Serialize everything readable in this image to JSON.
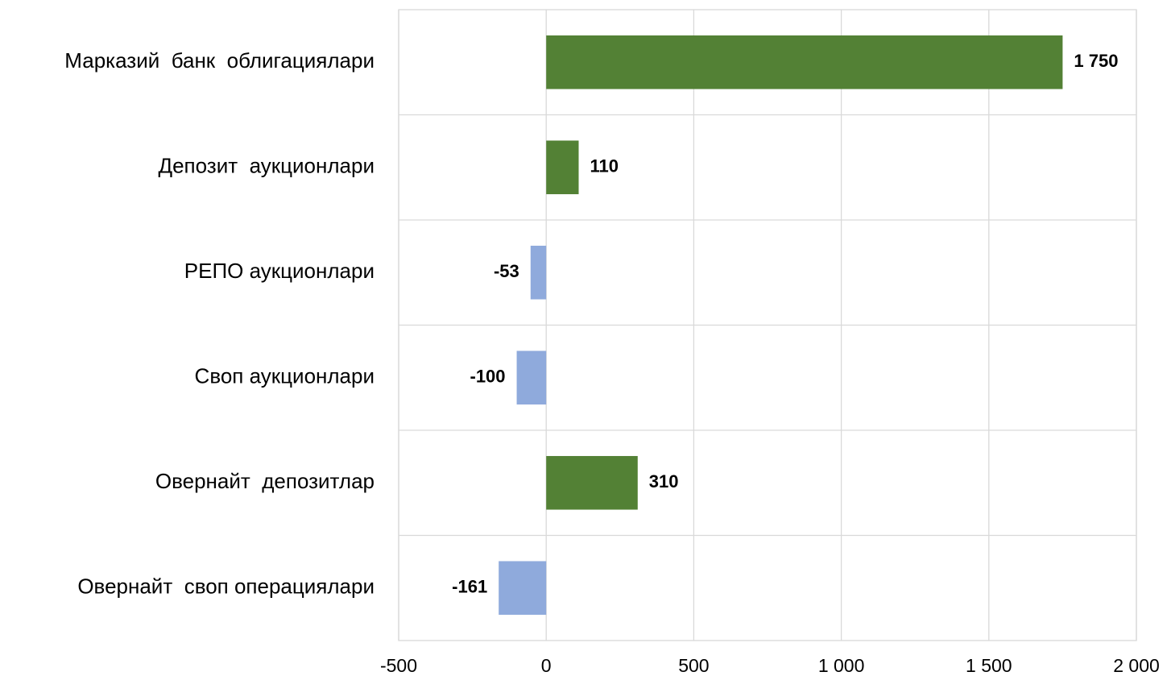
{
  "chart_data": {
    "type": "hbar",
    "categories": [
      "Марказий  банк  облигациялари",
      "Депозит  аукционлари",
      "РЕПО аукционлари",
      "Своп аукционлари",
      "Овернайт  депозитлар",
      "Овернайт  своп операциялари"
    ],
    "values": [
      1750,
      110,
      -53,
      -100,
      310,
      -161
    ],
    "value_labels": [
      "1 750",
      "110",
      "-53",
      "-100",
      "310",
      "-161"
    ],
    "positive_color": "#538135",
    "negative_color": "#8faadc",
    "xlim": [
      -500,
      2000
    ],
    "xticks": [
      -500,
      0,
      500,
      {
        "value": 1000,
        "label": "1 000"
      },
      {
        "value": 1500,
        "label": "1 500"
      },
      {
        "value": 2000,
        "label": "2 000"
      }
    ],
    "grid": true
  }
}
